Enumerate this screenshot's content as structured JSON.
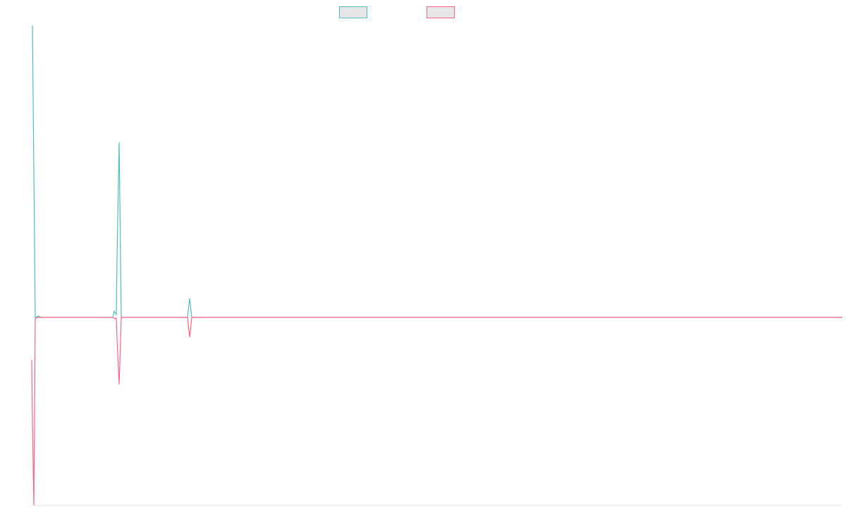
{
  "chart_data": {
    "type": "line",
    "x": [
      0,
      1,
      3,
      5,
      8,
      10,
      13,
      115,
      117,
      118,
      120,
      121,
      124,
      127,
      221,
      224,
      227,
      1150
    ],
    "xlim": [
      0,
      1150
    ],
    "ylim": [
      -266,
      414
    ],
    "series": [
      {
        "color": "#4bc0c0",
        "values": [
          null,
          414,
          207,
          0,
          1,
          2,
          0,
          0,
          9,
          7,
          4,
          85,
          248,
          0,
          0,
          27,
          0,
          0
        ]
      },
      {
        "color": "#ff6384",
        "values": [
          -60,
          -150,
          -266,
          -2,
          0,
          0,
          0,
          0,
          -1,
          -2,
          -1,
          -30,
          -95,
          0,
          0,
          -28,
          0,
          0
        ]
      }
    ]
  }
}
